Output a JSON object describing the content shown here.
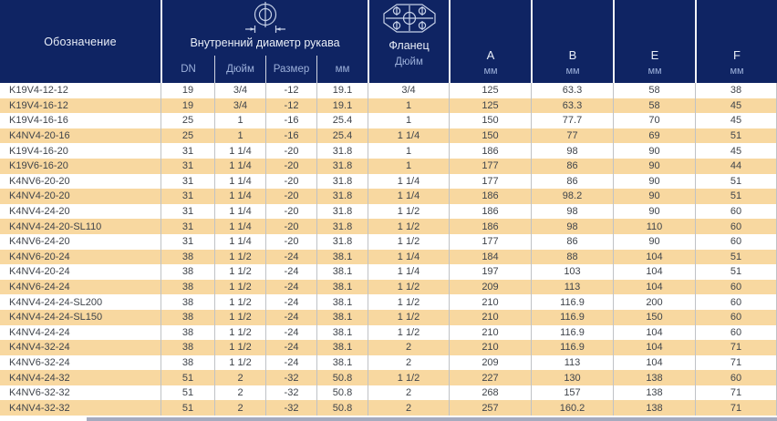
{
  "table": {
    "header": {
      "designation_label": "Обозначение",
      "inner_diameter": {
        "icon": "hose-diameter-icon",
        "label": "Внутренний диаметр рукава",
        "subcolumns": [
          "DN",
          "Дюйм",
          "Размер",
          "мм"
        ]
      },
      "flange": {
        "icon": "flange-icon",
        "label": "Фланец",
        "subcolumn": "Дюйм"
      },
      "dims": [
        {
          "label": "A",
          "unit": "мм"
        },
        {
          "label": "B",
          "unit": "мм"
        },
        {
          "label": "E",
          "unit": "мм"
        },
        {
          "label": "F",
          "unit": "мм"
        }
      ]
    },
    "cell_names": [
      "designation",
      "dn",
      "inch",
      "dash-size",
      "mm",
      "flange-inch",
      "a",
      "b",
      "e",
      "f"
    ],
    "rows": [
      [
        "K19V4-12-12",
        "19",
        "3/4",
        "-12",
        "19.1",
        "3/4",
        "125",
        "63.3",
        "58",
        "38"
      ],
      [
        "K19V4-16-12",
        "19",
        "3/4",
        "-12",
        "19.1",
        "1",
        "125",
        "63.3",
        "58",
        "45"
      ],
      [
        "K19V4-16-16",
        "25",
        "1",
        "-16",
        "25.4",
        "1",
        "150",
        "77.7",
        "70",
        "45"
      ],
      [
        "K4NV4-20-16",
        "25",
        "1",
        "-16",
        "25.4",
        "1 1/4",
        "150",
        "77",
        "69",
        "51"
      ],
      [
        "K19V4-16-20",
        "31",
        "1 1/4",
        "-20",
        "31.8",
        "1",
        "186",
        "98",
        "90",
        "45"
      ],
      [
        "K19V6-16-20",
        "31",
        "1 1/4",
        "-20",
        "31.8",
        "1",
        "177",
        "86",
        "90",
        "44"
      ],
      [
        "K4NV6-20-20",
        "31",
        "1 1/4",
        "-20",
        "31.8",
        "1 1/4",
        "177",
        "86",
        "90",
        "51"
      ],
      [
        "K4NV4-20-20",
        "31",
        "1 1/4",
        "-20",
        "31.8",
        "1 1/4",
        "186",
        "98.2",
        "90",
        "51"
      ],
      [
        "K4NV4-24-20",
        "31",
        "1 1/4",
        "-20",
        "31.8",
        "1 1/2",
        "186",
        "98",
        "90",
        "60"
      ],
      [
        "K4NV4-24-20-SL110",
        "31",
        "1 1/4",
        "-20",
        "31.8",
        "1 1/2",
        "186",
        "98",
        "110",
        "60"
      ],
      [
        "K4NV6-24-20",
        "31",
        "1 1/4",
        "-20",
        "31.8",
        "1 1/2",
        "177",
        "86",
        "90",
        "60"
      ],
      [
        "K4NV6-20-24",
        "38",
        "1 1/2",
        "-24",
        "38.1",
        "1 1/4",
        "184",
        "88",
        "104",
        "51"
      ],
      [
        "K4NV4-20-24",
        "38",
        "1 1/2",
        "-24",
        "38.1",
        "1 1/4",
        "197",
        "103",
        "104",
        "51"
      ],
      [
        "K4NV6-24-24",
        "38",
        "1 1/2",
        "-24",
        "38.1",
        "1 1/2",
        "209",
        "113",
        "104",
        "60"
      ],
      [
        "K4NV4-24-24-SL200",
        "38",
        "1 1/2",
        "-24",
        "38.1",
        "1 1/2",
        "210",
        "116.9",
        "200",
        "60"
      ],
      [
        "K4NV4-24-24-SL150",
        "38",
        "1 1/2",
        "-24",
        "38.1",
        "1 1/2",
        "210",
        "116.9",
        "150",
        "60"
      ],
      [
        "K4NV4-24-24",
        "38",
        "1 1/2",
        "-24",
        "38.1",
        "1 1/2",
        "210",
        "116.9",
        "104",
        "60"
      ],
      [
        "K4NV4-32-24",
        "38",
        "1 1/2",
        "-24",
        "38.1",
        "2",
        "210",
        "116.9",
        "104",
        "71"
      ],
      [
        "K4NV6-32-24",
        "38",
        "1 1/2",
        "-24",
        "38.1",
        "2",
        "209",
        "113",
        "104",
        "71"
      ],
      [
        "K4NV4-24-32",
        "51",
        "2",
        "-32",
        "50.8",
        "1 1/2",
        "227",
        "130",
        "138",
        "60"
      ],
      [
        "K4NV6-32-32",
        "51",
        "2",
        "-32",
        "50.8",
        "2",
        "268",
        "157",
        "138",
        "71"
      ],
      [
        "K4NV4-32-32",
        "51",
        "2",
        "-32",
        "50.8",
        "2",
        "257",
        "160.2",
        "138",
        "71"
      ]
    ]
  },
  "colors": {
    "header_bg": "#0f2463",
    "row_alt_bg": "#f8d8a0",
    "row_bg": "#ffffff",
    "body_text": "#3f444b",
    "header_text": "#e9eef7",
    "header_subtext": "#9cb0da",
    "grid_line": "#bfc2c6"
  }
}
